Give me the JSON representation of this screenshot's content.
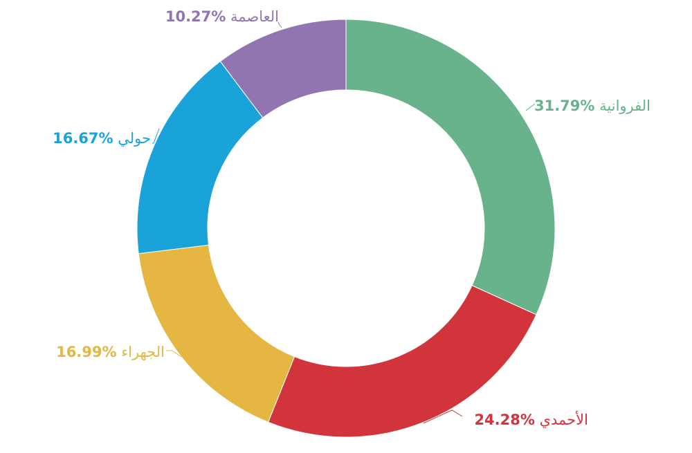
{
  "chart_data": {
    "type": "pie",
    "variant": "donut",
    "legend": "none",
    "slices": [
      {
        "name": "الفروانية",
        "value": 31.79,
        "label_value": "31.79%",
        "color": "#69b38c"
      },
      {
        "name": "الأحمدي",
        "value": 24.28,
        "label_value": "24.28%",
        "color": "#d2343c"
      },
      {
        "name": "الجهراء",
        "value": 16.99,
        "label_value": "16.99%",
        "color": "#e5b642"
      },
      {
        "name": "حولي",
        "value": 16.67,
        "label_value": "16.67%",
        "color": "#19a3d9"
      },
      {
        "name": "العاصمة",
        "value": 10.27,
        "label_value": "10.27%",
        "color": "#9175b0"
      }
    ]
  }
}
